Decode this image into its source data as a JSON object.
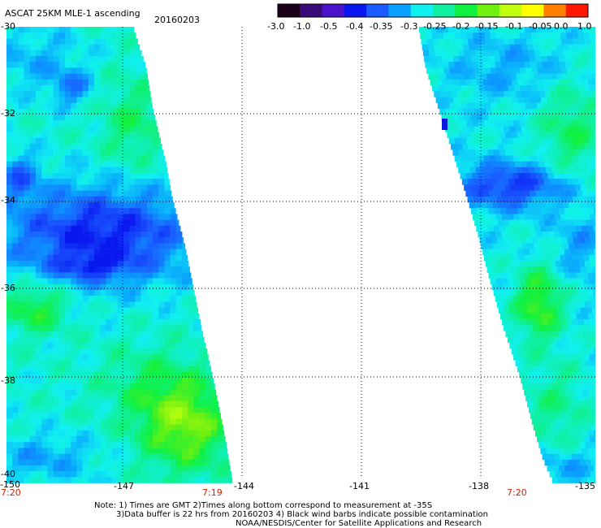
{
  "header": {
    "product": "ASCAT 25KM MLE-1 ascending",
    "date": "20160203"
  },
  "colorbar": {
    "labels": [
      "-3.0",
      "-1.0",
      "-0.5",
      "-0.4",
      "-0.35",
      "-0.3",
      "-0.25",
      "-0.2",
      "-0.15",
      "-0.1",
      "-0.05",
      "0.0",
      "1.0"
    ],
    "colors": [
      "#1a0018",
      "#3a0a78",
      "#4a14c8",
      "#0a18f0",
      "#1a5cff",
      "#0aa0ff",
      "#10f0f0",
      "#10f0a0",
      "#10f040",
      "#70f010",
      "#c0ff10",
      "#ffff00",
      "#ff8000",
      "#ff1800"
    ]
  },
  "map": {
    "lat_labels": [
      "-30",
      "-32",
      "-34",
      "-36",
      "-38",
      "-40"
    ],
    "lon_labels": [
      "-150",
      "-147",
      "-144",
      "-141",
      "-138",
      "-135"
    ],
    "times": [
      "7:20",
      "7:19",
      "7:20"
    ]
  },
  "footer": {
    "note1": "Note: 1) Times are GMT 2)Times along bottom correspond to measurement at -35S",
    "note2": "3)Data buffer is 22 hrs from 20160203 4) Black wind barbs indicate possible contamination",
    "credit": "NOAA/NESDIS/Center for Satellite Applications and Research"
  }
}
